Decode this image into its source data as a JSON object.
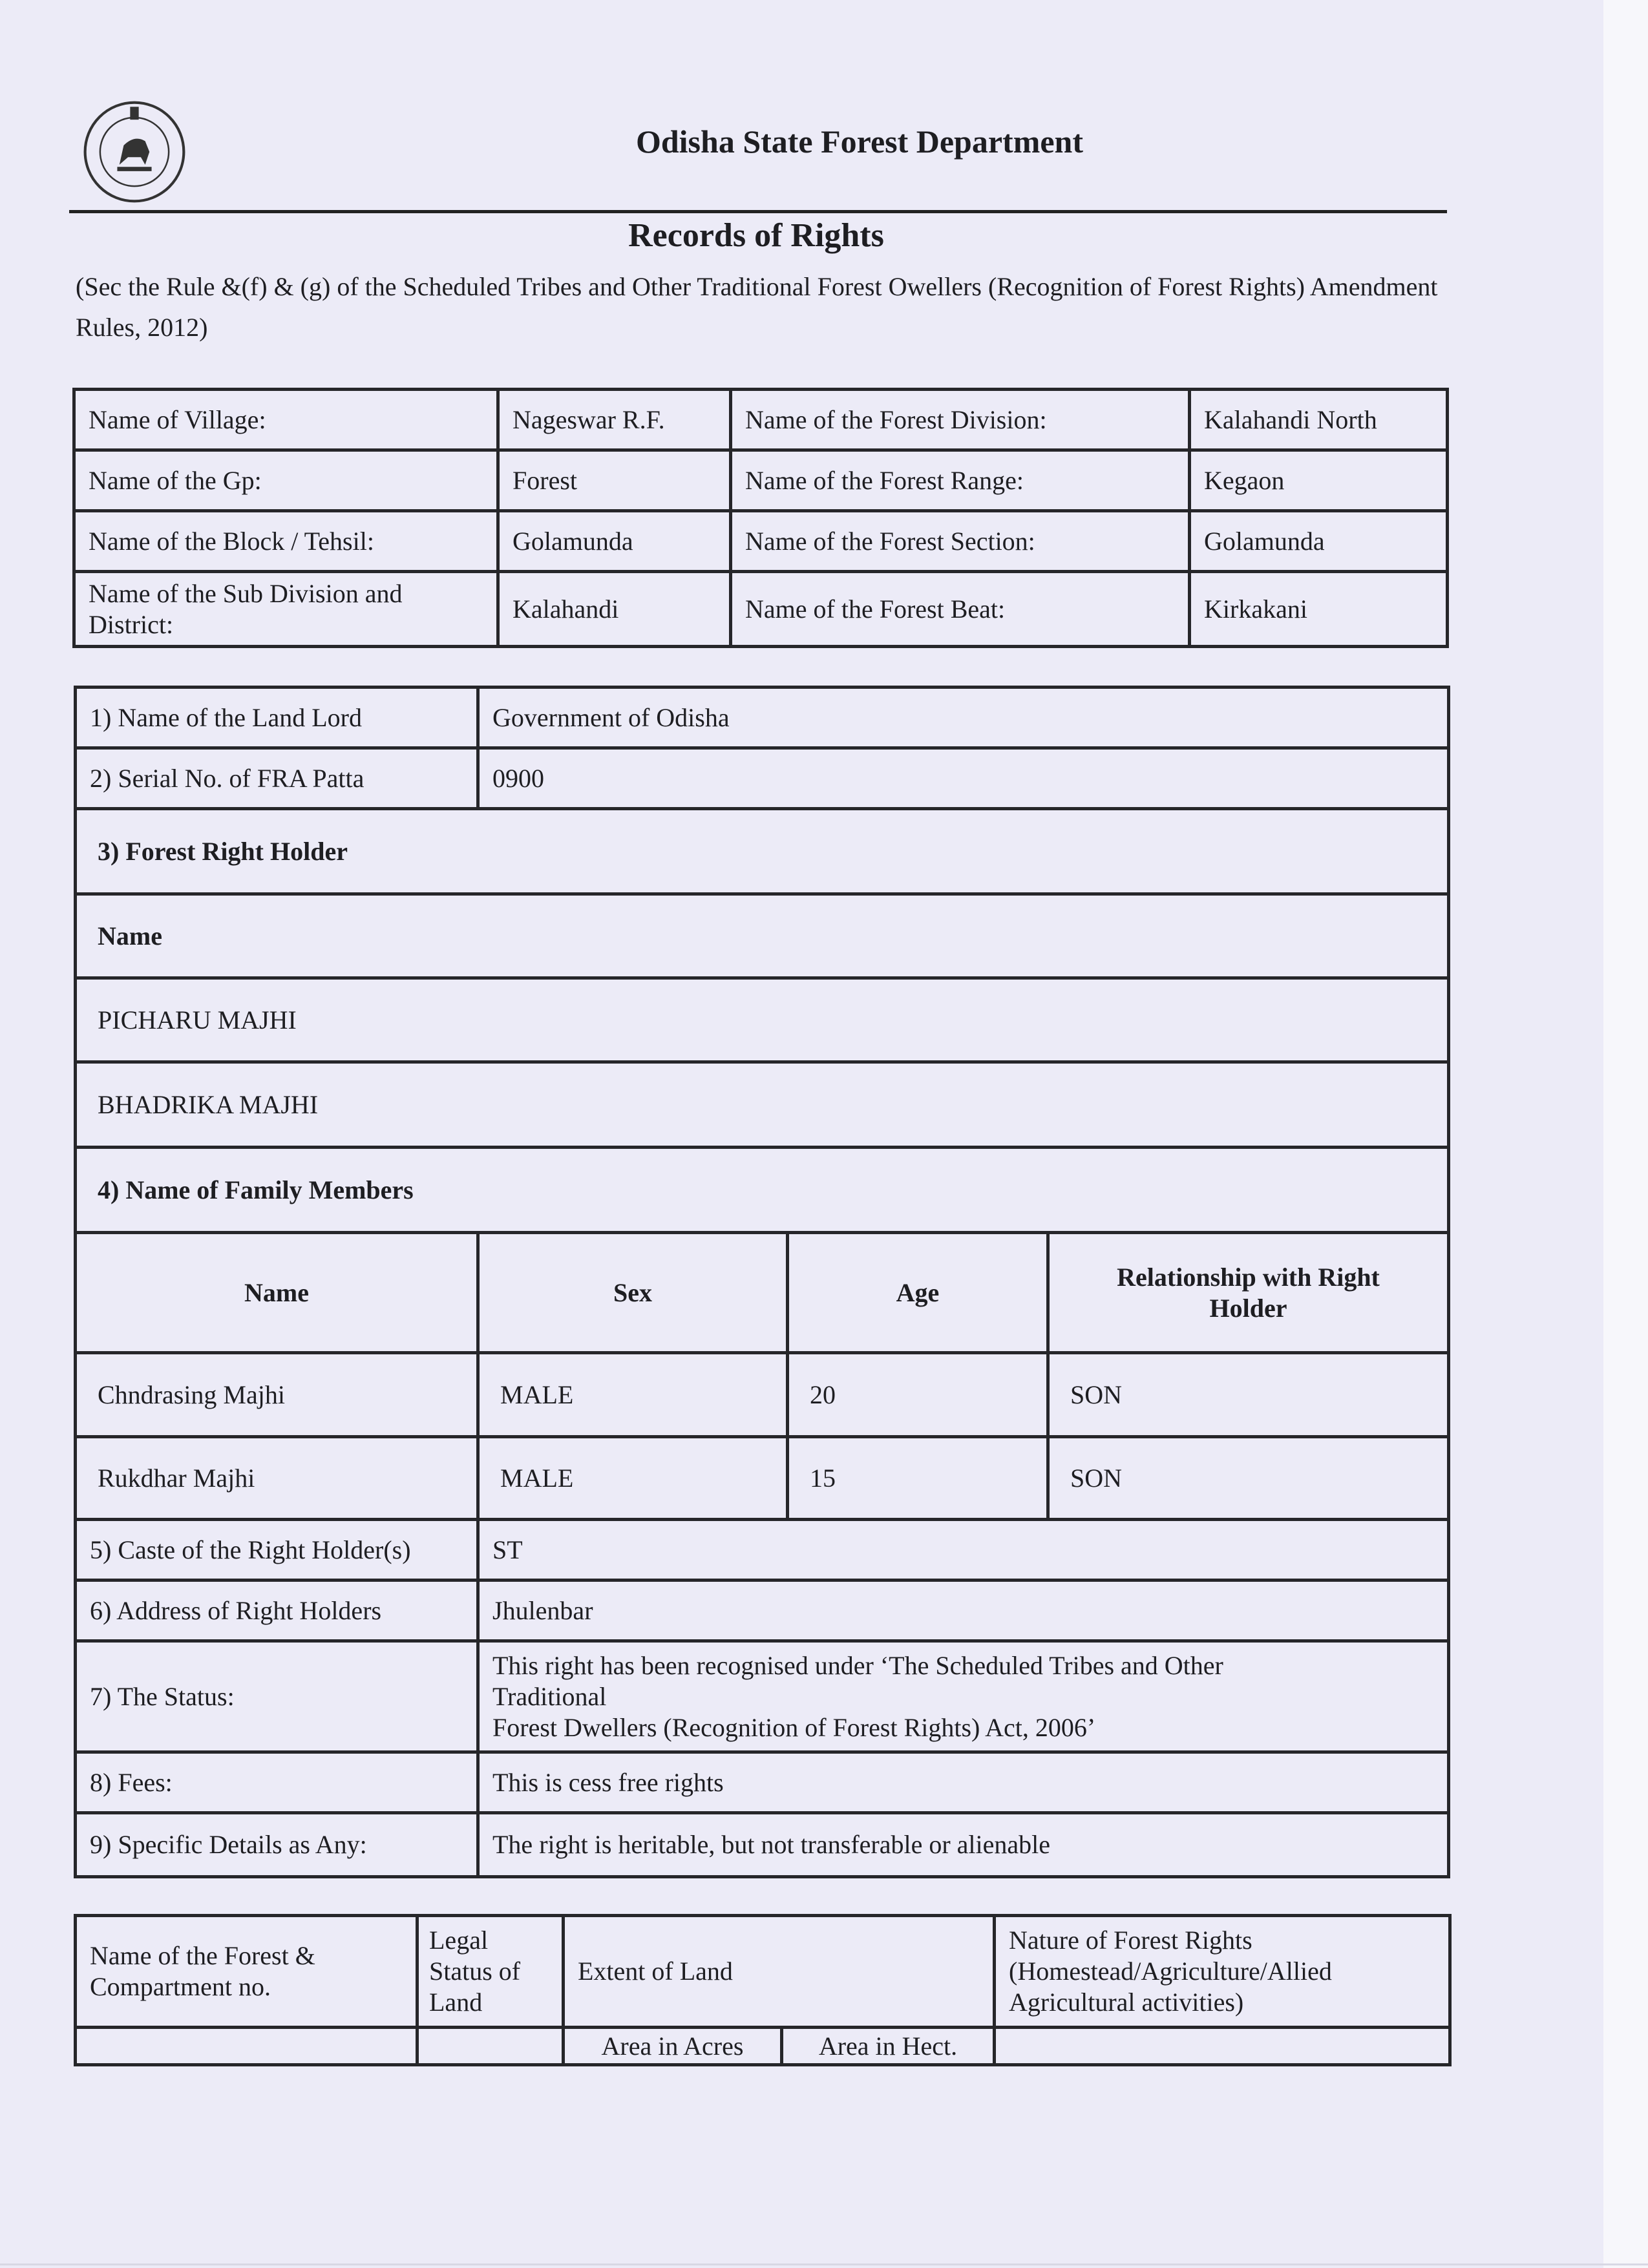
{
  "header": {
    "department": "Odisha State Forest Department",
    "emblem_icon": "odisha-state-emblem",
    "title": "Records of Rights",
    "subtitle": "(Sec the Rule &(f) & (g) of the Scheduled Tribes and Other Traditional Forest Owellers (Recognition of Forest Rights) Amendment Rules, 2012)"
  },
  "location": [
    {
      "l1": "Name of Village:",
      "v1": "Nageswar R.F.",
      "l2": "Name of the Forest Division:",
      "v2": "Kalahandi North"
    },
    {
      "l1": "Name of the Gp:",
      "v1": "Forest",
      "l2": "Name of the Forest Range:",
      "v2": "Kegaon"
    },
    {
      "l1": "Name of the Block / Tehsil:",
      "v1": "Golamunda",
      "l2": "Name of the Forest Section:",
      "v2": "Golamunda"
    },
    {
      "l1": "Name of the Sub Division and District:",
      "v1": "Kalahandi",
      "l2": "Name of the Forest Beat:",
      "v2": "Kirkakani"
    }
  ],
  "record": {
    "land_lord_label": "1) Name of the Land Lord",
    "land_lord": "Government of Odisha",
    "serial_label": "2) Serial No. of FRA Patta",
    "serial": "0900",
    "holder_heading": "3) Forest Right Holder",
    "name_heading": "Name",
    "holders": [
      "PICHARU MAJHI",
      "BHADRIKA MAJHI"
    ],
    "family_heading": "4) Name of Family Members",
    "family_columns": [
      "Name",
      "Sex",
      "Age",
      "Relationship with Right Holder"
    ],
    "family": [
      [
        "Chndrasing Majhi",
        "MALE",
        "20",
        "SON"
      ],
      [
        "Rukdhar Majhi",
        "MALE",
        "15",
        "SON"
      ]
    ],
    "caste_label": "5) Caste of the Right Holder(s)",
    "caste": "ST",
    "address_label": "6) Address of Right Holders",
    "address": "Jhulenbar",
    "status_label": "7) The Status:",
    "status_lines": [
      "This right has been recognised under ‘The Scheduled Tribes and Other",
      "Traditional",
      "Forest Dwellers (Recognition of Forest Rights) Act, 2006’"
    ],
    "fees_label": "8) Fees:",
    "fees": "This is cess free rights",
    "details_label": "9) Specific Details as Any:",
    "details": "The right is heritable, but not transferable or alienable"
  },
  "land": {
    "col1": "Name of the Forest & Compartment no.",
    "col2": "Legal Status of Land",
    "col3": "Extent of Land",
    "col4": "Nature of Forest Rights (Homestead/Agriculture/Allied Agricultural activities)",
    "acres": "Area in Acres",
    "hect": "Area in Hect."
  }
}
